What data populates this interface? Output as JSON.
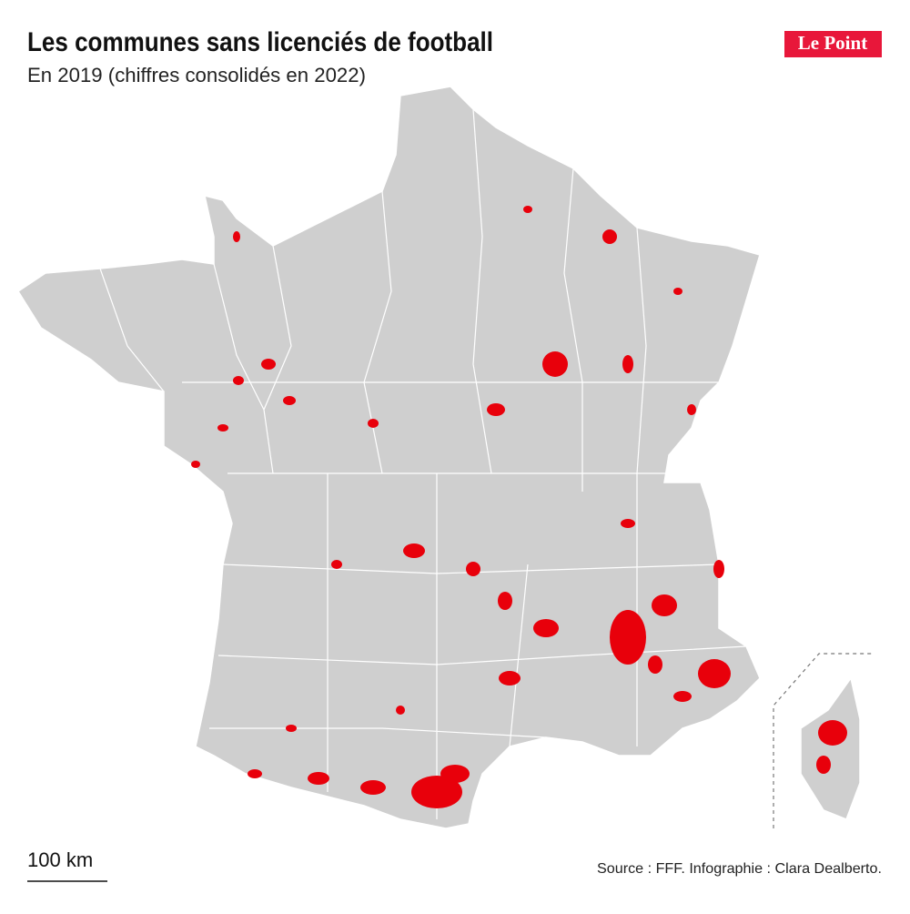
{
  "header": {
    "title": "Les communes sans licenciés de football",
    "subtitle": "En 2019 (chiffres consolidés en 2022)",
    "logo": "Le Point"
  },
  "map": {
    "scale_label": "100 km"
  },
  "footer": {
    "source": "Source : FFF. Infographie : Clara Dealberto."
  }
}
